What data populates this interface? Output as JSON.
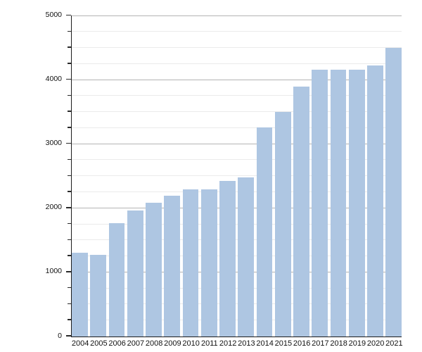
{
  "chart_data": {
    "type": "bar",
    "title": "",
    "xlabel": "",
    "ylabel": "",
    "categories": [
      "2004",
      "2005",
      "2006",
      "2007",
      "2008",
      "2009",
      "2010",
      "2011",
      "2012",
      "2013",
      "2014",
      "2015",
      "2016",
      "2017",
      "2018",
      "2019",
      "2020",
      "2021"
    ],
    "values": [
      1300,
      1270,
      1760,
      1955,
      2080,
      2185,
      2285,
      2290,
      2420,
      2475,
      3250,
      3500,
      3890,
      4155,
      4155,
      4160,
      4225,
      4495
    ],
    "ylim": [
      0,
      5000
    ],
    "ytick_labels": [
      "0",
      "1000",
      "2000",
      "3000",
      "4000",
      "5000"
    ],
    "ytick_major_step": 1000,
    "ytick_minor_step": 250,
    "grid": "horizontal major + faint minor, drawn behind bars",
    "legend": "none",
    "colors": {
      "bar_fill": "#aec6e2",
      "major_gridline": "#b4b4b4",
      "minor_gridline": "#ebebeb",
      "axis_line": "#1c1c1c",
      "tick_mark": "#2a2a2a",
      "label_text": "#111111",
      "background": "#ffffff"
    }
  }
}
